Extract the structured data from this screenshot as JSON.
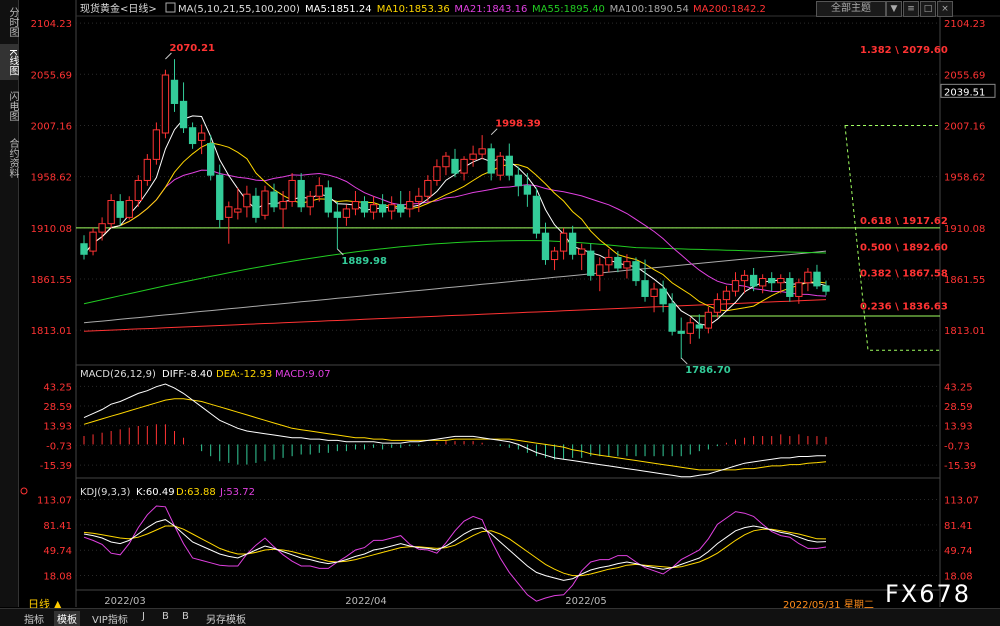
{
  "side_tabs": [
    "分时图",
    "K线图",
    "闪电图",
    "合约资料"
  ],
  "side_active": 1,
  "header": {
    "symbol": "现货黄金<日线>",
    "ma_label": "MA(5,10,21,55,100,200)",
    "ma": [
      {
        "label": "MA5:1851.24",
        "color": "#ffffff"
      },
      {
        "label": "MA10:1853.36",
        "color": "#ffd700"
      },
      {
        "label": "MA21:1843.16",
        "color": "#e040e0"
      },
      {
        "label": "MA55:1895.40",
        "color": "#22cc22"
      },
      {
        "label": "MA100:1890.54",
        "color": "#aaaaaa"
      },
      {
        "label": "MA200:1842.2",
        "color": "#ff3333"
      }
    ]
  },
  "theme_button": "全部主题",
  "win_buttons": [
    "▼",
    "≡",
    "□",
    "×"
  ],
  "macd_label": {
    "name": "MACD(26,12,9)",
    "diff": "DIFF:-8.40",
    "dea": "DEA:-12.93",
    "macd": "MACD:9.07"
  },
  "kdj_label": {
    "name": "KDJ(9,3,3)",
    "k": "K:60.49",
    "d": "D:63.88",
    "j": "J:53.72"
  },
  "bottom_tabs": [
    "指标",
    "模板",
    "VIP指标",
    "J",
    "B",
    "B",
    "另存模板"
  ],
  "bottom_active": 1,
  "period_label": "日线 ▲",
  "date_label": "2022/05/31 星期二",
  "watermark": "FX678",
  "colors": {
    "up": "#ff3333",
    "down": "#33cc99",
    "grid": "#2a2a2a",
    "axis": "#ff3333"
  },
  "chart_data": [
    {
      "type": "candlestick",
      "panel": "price",
      "x": [
        "2022/03",
        "2022/04",
        "2022/05"
      ],
      "y_ticks": [
        2104.23,
        2055.69,
        2007.16,
        1958.62,
        1910.08,
        1861.55,
        1813.01
      ],
      "ylim": [
        1780,
        2110
      ],
      "current_price": 2039.51,
      "annotations": [
        {
          "text": "2070.21",
          "value": 2070.21
        },
        {
          "text": "1998.39",
          "value": 1998.39
        },
        {
          "text": "1889.98",
          "value": 1889.98
        },
        {
          "text": "1786.70",
          "value": 1786.7
        }
      ],
      "fibonacci": [
        {
          "text": "1.382 \\ 2079.60",
          "value": 2079.6
        },
        {
          "text": "0.618 \\ 1917.62",
          "value": 1917.62
        },
        {
          "text": "0.500 \\ 1892.60",
          "value": 1892.6
        },
        {
          "text": "0.382 \\ 1867.58",
          "value": 1867.58
        },
        {
          "text": "0.236 \\ 1836.63",
          "value": 1836.63
        }
      ],
      "hlines": [
        1910.08,
        1826.5
      ],
      "ohlc": [
        [
          1895,
          1903,
          1880,
          1885
        ],
        [
          1888,
          1910,
          1884,
          1906
        ],
        [
          1906,
          1920,
          1898,
          1914
        ],
        [
          1914,
          1942,
          1910,
          1936
        ],
        [
          1935,
          1942,
          1912,
          1920
        ],
        [
          1920,
          1940,
          1918,
          1936
        ],
        [
          1936,
          1960,
          1930,
          1955
        ],
        [
          1955,
          1980,
          1950,
          1975
        ],
        [
          1975,
          2010,
          1970,
          2003
        ],
        [
          2000,
          2060,
          1995,
          2055
        ],
        [
          2050,
          2070,
          2020,
          2028
        ],
        [
          2030,
          2048,
          2000,
          2005
        ],
        [
          2005,
          2010,
          1985,
          1990
        ],
        [
          1993,
          2008,
          1980,
          2000
        ],
        [
          1990,
          1998,
          1955,
          1960
        ],
        [
          1960,
          1970,
          1910,
          1918
        ],
        [
          1920,
          1935,
          1895,
          1930
        ],
        [
          1925,
          1948,
          1918,
          1928
        ],
        [
          1930,
          1950,
          1920,
          1942
        ],
        [
          1940,
          1948,
          1915,
          1920
        ],
        [
          1922,
          1950,
          1918,
          1945
        ],
        [
          1944,
          1952,
          1925,
          1930
        ],
        [
          1928,
          1945,
          1910,
          1935
        ],
        [
          1935,
          1962,
          1930,
          1955
        ],
        [
          1955,
          1962,
          1925,
          1930
        ],
        [
          1930,
          1945,
          1922,
          1940
        ],
        [
          1940,
          1958,
          1935,
          1950
        ],
        [
          1948,
          1955,
          1920,
          1925
        ],
        [
          1925,
          1935,
          1890,
          1920
        ],
        [
          1920,
          1932,
          1912,
          1928
        ],
        [
          1928,
          1945,
          1922,
          1935
        ],
        [
          1935,
          1940,
          1920,
          1925
        ],
        [
          1925,
          1940,
          1918,
          1932
        ],
        [
          1932,
          1942,
          1920,
          1925
        ],
        [
          1926,
          1940,
          1918,
          1932
        ],
        [
          1932,
          1945,
          1920,
          1925
        ],
        [
          1928,
          1945,
          1920,
          1935
        ],
        [
          1935,
          1948,
          1925,
          1940
        ],
        [
          1940,
          1960,
          1935,
          1955
        ],
        [
          1955,
          1975,
          1950,
          1968
        ],
        [
          1968,
          1982,
          1960,
          1978
        ],
        [
          1975,
          1985,
          1958,
          1962
        ],
        [
          1962,
          1978,
          1955,
          1975
        ],
        [
          1975,
          1988,
          1968,
          1980
        ],
        [
          1980,
          1998,
          1975,
          1985
        ],
        [
          1985,
          1990,
          1955,
          1962
        ],
        [
          1960,
          1982,
          1955,
          1978
        ],
        [
          1978,
          1990,
          1955,
          1960
        ],
        [
          1960,
          1968,
          1940,
          1950
        ],
        [
          1950,
          1962,
          1930,
          1942
        ],
        [
          1940,
          1948,
          1900,
          1905
        ],
        [
          1905,
          1915,
          1875,
          1880
        ],
        [
          1880,
          1892,
          1870,
          1888
        ],
        [
          1888,
          1910,
          1880,
          1905
        ],
        [
          1905,
          1912,
          1880,
          1885
        ],
        [
          1885,
          1895,
          1870,
          1890
        ],
        [
          1888,
          1895,
          1860,
          1865
        ],
        [
          1865,
          1882,
          1850,
          1875
        ],
        [
          1875,
          1890,
          1868,
          1882
        ],
        [
          1882,
          1888,
          1868,
          1872
        ],
        [
          1872,
          1885,
          1862,
          1878
        ],
        [
          1878,
          1882,
          1855,
          1860
        ],
        [
          1860,
          1880,
          1840,
          1845
        ],
        [
          1845,
          1858,
          1830,
          1852
        ],
        [
          1852,
          1860,
          1830,
          1838
        ],
        [
          1838,
          1848,
          1808,
          1812
        ],
        [
          1812,
          1825,
          1786,
          1810
        ],
        [
          1810,
          1825,
          1800,
          1820
        ],
        [
          1818,
          1828,
          1805,
          1815
        ],
        [
          1815,
          1835,
          1810,
          1830
        ],
        [
          1830,
          1848,
          1825,
          1842
        ],
        [
          1842,
          1855,
          1832,
          1850
        ],
        [
          1850,
          1868,
          1845,
          1860
        ],
        [
          1860,
          1870,
          1848,
          1865
        ],
        [
          1865,
          1872,
          1850,
          1855
        ],
        [
          1855,
          1866,
          1848,
          1862
        ],
        [
          1862,
          1868,
          1850,
          1858
        ],
        [
          1858,
          1866,
          1848,
          1862
        ],
        [
          1862,
          1868,
          1840,
          1845
        ],
        [
          1845,
          1862,
          1838,
          1858
        ],
        [
          1858,
          1872,
          1850,
          1868
        ],
        [
          1868,
          1875,
          1852,
          1855
        ],
        [
          1855,
          1860,
          1846,
          1850
        ]
      ]
    },
    {
      "type": "macd",
      "panel": "macd",
      "y_ticks": [
        43.25,
        28.59,
        13.93,
        -0.73,
        -15.39
      ],
      "ylim": [
        -25,
        48
      ],
      "diff": [
        20,
        23,
        26,
        30,
        32,
        35,
        38,
        40,
        43,
        45,
        42,
        38,
        33,
        28,
        23,
        18,
        15,
        12,
        10,
        9,
        8,
        7,
        6,
        5,
        5,
        4,
        4,
        3,
        3,
        2,
        2,
        2,
        2,
        1,
        1,
        1,
        2,
        2,
        3,
        4,
        5,
        6,
        6,
        6,
        5,
        4,
        3,
        2,
        0,
        -3,
        -6,
        -8,
        -10,
        -11,
        -12,
        -13,
        -14,
        -15,
        -16,
        -17,
        -18,
        -19,
        -20,
        -21,
        -22,
        -23,
        -24,
        -24,
        -23,
        -22,
        -20,
        -18,
        -16,
        -14,
        -13,
        -12,
        -11,
        -10,
        -10,
        -9,
        -9,
        -8.5,
        -8.4
      ],
      "dea": [
        15,
        17,
        19,
        21,
        23,
        25,
        27,
        29,
        31,
        33,
        34,
        34,
        33,
        32,
        30,
        28,
        26,
        24,
        22,
        20,
        18,
        16,
        14,
        12,
        11,
        10,
        9,
        8,
        7,
        6,
        5,
        5,
        4,
        4,
        3,
        3,
        3,
        3,
        3,
        3,
        3,
        4,
        4,
        4,
        4,
        4,
        4,
        4,
        3,
        2,
        1,
        0,
        -1,
        -2,
        -4,
        -5,
        -7,
        -8,
        -9,
        -10,
        -11,
        -12,
        -13,
        -14,
        -15,
        -16,
        -17,
        -18,
        -19,
        -19,
        -19,
        -19,
        -19,
        -18,
        -18,
        -17,
        -16,
        -16,
        -15,
        -15,
        -14,
        -13.5,
        -12.9
      ],
      "hist": [
        10,
        12,
        14,
        16,
        18,
        20,
        22,
        22,
        24,
        24,
        16,
        8,
        0,
        -8,
        -14,
        -20,
        -22,
        -24,
        -24,
        -22,
        -20,
        -18,
        -16,
        -14,
        -12,
        -12,
        -10,
        -10,
        -8,
        -8,
        -6,
        -6,
        -4,
        -6,
        -4,
        -4,
        -2,
        -2,
        0,
        2,
        4,
        4,
        4,
        4,
        2,
        0,
        -2,
        -4,
        -6,
        -10,
        -14,
        -16,
        -18,
        -18,
        -16,
        -16,
        -14,
        -14,
        -14,
        -14,
        -14,
        -14,
        -14,
        -14,
        -14,
        -14,
        -14,
        -12,
        -8,
        -6,
        -2,
        2,
        6,
        8,
        10,
        10,
        10,
        12,
        10,
        12,
        10,
        10,
        9
      ]
    },
    {
      "type": "kdj",
      "panel": "kdj",
      "y_ticks": [
        113.07,
        81.41,
        49.74,
        18.08
      ],
      "ylim": [
        0,
        120
      ],
      "k": [
        70,
        68,
        65,
        60,
        58,
        62,
        70,
        78,
        85,
        88,
        80,
        70,
        60,
        55,
        50,
        45,
        42,
        40,
        45,
        50,
        55,
        52,
        48,
        44,
        40,
        38,
        35,
        33,
        35,
        38,
        42,
        45,
        50,
        52,
        55,
        58,
        55,
        53,
        52,
        50,
        55,
        62,
        70,
        76,
        78,
        70,
        60,
        50,
        40,
        30,
        22,
        18,
        15,
        12,
        14,
        20,
        25,
        28,
        30,
        33,
        35,
        33,
        30,
        28,
        26,
        28,
        32,
        36,
        40,
        48,
        58,
        66,
        74,
        78,
        80,
        78,
        75,
        72,
        70,
        66,
        62,
        60,
        60.5
      ],
      "d": [
        72,
        71,
        69,
        67,
        65,
        64,
        66,
        70,
        75,
        80,
        80,
        76,
        70,
        64,
        58,
        52,
        48,
        45,
        45,
        47,
        50,
        51,
        50,
        48,
        45,
        42,
        39,
        36,
        35,
        36,
        38,
        41,
        44,
        47,
        50,
        53,
        54,
        54,
        53,
        52,
        53,
        56,
        62,
        68,
        73,
        74,
        70,
        64,
        56,
        48,
        40,
        32,
        26,
        21,
        18,
        18,
        20,
        23,
        26,
        28,
        31,
        32,
        31,
        30,
        29,
        28,
        29,
        32,
        35,
        40,
        46,
        54,
        62,
        69,
        74,
        76,
        76,
        74,
        72,
        70,
        67,
        64,
        63.9
      ],
      "j": [
        66,
        62,
        57,
        46,
        44,
        58,
        78,
        94,
        105,
        104,
        80,
        58,
        40,
        37,
        34,
        31,
        30,
        30,
        45,
        56,
        65,
        54,
        44,
        36,
        30,
        30,
        27,
        27,
        35,
        42,
        50,
        53,
        62,
        62,
        65,
        68,
        57,
        51,
        50,
        46,
        59,
        74,
        86,
        92,
        88,
        62,
        40,
        22,
        8,
        -6,
        -14,
        -10,
        -7,
        -6,
        6,
        24,
        35,
        38,
        38,
        43,
        43,
        35,
        28,
        24,
        20,
        28,
        38,
        44,
        50,
        64,
        82,
        90,
        98,
        96,
        92,
        82,
        73,
        68,
        66,
        58,
        52,
        52,
        53.7
      ]
    }
  ]
}
